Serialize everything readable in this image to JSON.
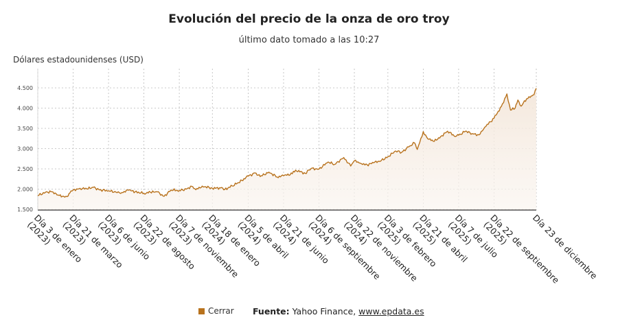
{
  "chart_data": {
    "type": "area",
    "title": "Evolución del precio de la onza de oro troy",
    "subtitle": "último dato tomado a las 10:27",
    "ylabel": "Dólares estadounidenses (USD)",
    "ylim": [
      1500,
      4500
    ],
    "yticks": [
      1500,
      2000,
      2500,
      3000,
      3500,
      4000,
      4500
    ],
    "ytick_labels": [
      "1.500",
      "2.000",
      "2.500",
      "3.000",
      "3.500",
      "4.000",
      "4.500"
    ],
    "xticks": [
      {
        "date": "2023-01-03",
        "label": [
          "Día 3 de enero",
          "(2023)"
        ]
      },
      {
        "date": "2023-03-21",
        "label": [
          "Día 21 de marzo",
          "(2023)"
        ]
      },
      {
        "date": "2023-06-06",
        "label": [
          "Día 6 de junio",
          "(2023)"
        ]
      },
      {
        "date": "2023-08-22",
        "label": [
          "Día 22 de agosto",
          "(2023)"
        ]
      },
      {
        "date": "2023-11-07",
        "label": [
          "Día 7 de noviembre",
          "(2023)"
        ]
      },
      {
        "date": "2024-01-18",
        "label": [
          "Día 18 de enero",
          "(2024)"
        ]
      },
      {
        "date": "2024-04-05",
        "label": [
          "Día 5 de abril",
          "(2024)"
        ]
      },
      {
        "date": "2024-06-21",
        "label": [
          "Día 21 de junio",
          "(2024)"
        ]
      },
      {
        "date": "2024-09-06",
        "label": [
          "Día 6 de septiembre",
          "(2024)"
        ]
      },
      {
        "date": "2024-11-22",
        "label": [
          "Día 22 de noviembre",
          "(2024)"
        ]
      },
      {
        "date": "2025-02-03",
        "label": [
          "Día 3 de febrero",
          "(2025)"
        ]
      },
      {
        "date": "2025-04-21",
        "label": [
          "Día 21 de abril",
          "(2025)"
        ]
      },
      {
        "date": "2025-07-07",
        "label": [
          "Día 7 de julio",
          "(2025)"
        ]
      },
      {
        "date": "2025-09-22",
        "label": [
          "Día 22 de septiembre",
          "(2025)"
        ]
      },
      {
        "date": "2025-12-23",
        "label": [
          "Día 23 de diciembre"
        ]
      }
    ],
    "grid": true,
    "legend_position": "bottom",
    "series": [
      {
        "name": "Cerrar",
        "color": "#b8721d",
        "points": [
          [
            "2023-01-03",
            1840
          ],
          [
            "2023-01-20",
            1925
          ],
          [
            "2023-02-03",
            1935
          ],
          [
            "2023-02-14",
            1855
          ],
          [
            "2023-02-28",
            1825
          ],
          [
            "2023-03-08",
            1815
          ],
          [
            "2023-03-14",
            1905
          ],
          [
            "2023-03-21",
            1975
          ],
          [
            "2023-04-05",
            2020
          ],
          [
            "2023-04-20",
            2005
          ],
          [
            "2023-05-04",
            2045
          ],
          [
            "2023-05-18",
            1980
          ],
          [
            "2023-06-06",
            1960
          ],
          [
            "2023-06-22",
            1925
          ],
          [
            "2023-07-05",
            1915
          ],
          [
            "2023-07-20",
            1975
          ],
          [
            "2023-08-03",
            1935
          ],
          [
            "2023-08-22",
            1895
          ],
          [
            "2023-09-05",
            1925
          ],
          [
            "2023-09-20",
            1930
          ],
          [
            "2023-10-05",
            1822
          ],
          [
            "2023-10-20",
            1980
          ],
          [
            "2023-11-07",
            1965
          ],
          [
            "2023-11-22",
            2000
          ],
          [
            "2023-12-04",
            2070
          ],
          [
            "2023-12-13",
            1985
          ],
          [
            "2023-12-27",
            2075
          ],
          [
            "2024-01-18",
            2020
          ],
          [
            "2024-02-05",
            2030
          ],
          [
            "2024-02-14",
            1990
          ],
          [
            "2024-03-01",
            2080
          ],
          [
            "2024-03-15",
            2160
          ],
          [
            "2024-04-05",
            2320
          ],
          [
            "2024-04-20",
            2400
          ],
          [
            "2024-05-01",
            2310
          ],
          [
            "2024-05-20",
            2420
          ],
          [
            "2024-06-07",
            2300
          ],
          [
            "2024-06-21",
            2330
          ],
          [
            "2024-07-10",
            2380
          ],
          [
            "2024-07-17",
            2470
          ],
          [
            "2024-08-07",
            2390
          ],
          [
            "2024-08-20",
            2510
          ],
          [
            "2024-09-06",
            2495
          ],
          [
            "2024-09-26",
            2670
          ],
          [
            "2024-10-10",
            2610
          ],
          [
            "2024-10-30",
            2780
          ],
          [
            "2024-11-14",
            2570
          ],
          [
            "2024-11-22",
            2700
          ],
          [
            "2024-12-05",
            2640
          ],
          [
            "2024-12-20",
            2600
          ],
          [
            "2025-01-03",
            2650
          ],
          [
            "2025-01-20",
            2710
          ],
          [
            "2025-02-03",
            2800
          ],
          [
            "2025-02-20",
            2940
          ],
          [
            "2025-03-05",
            2910
          ],
          [
            "2025-03-20",
            3040
          ],
          [
            "2025-04-02",
            3140
          ],
          [
            "2025-04-08",
            2980
          ],
          [
            "2025-04-21",
            3420
          ],
          [
            "2025-05-01",
            3240
          ],
          [
            "2025-05-15",
            3180
          ],
          [
            "2025-05-29",
            3300
          ],
          [
            "2025-06-13",
            3430
          ],
          [
            "2025-06-30",
            3300
          ],
          [
            "2025-07-07",
            3330
          ],
          [
            "2025-07-22",
            3430
          ],
          [
            "2025-08-05",
            3370
          ],
          [
            "2025-08-20",
            3340
          ],
          [
            "2025-09-02",
            3530
          ],
          [
            "2025-09-22",
            3750
          ],
          [
            "2025-10-08",
            4040
          ],
          [
            "2025-10-20",
            4350
          ],
          [
            "2025-10-28",
            3950
          ],
          [
            "2025-11-07",
            4000
          ],
          [
            "2025-11-13",
            4200
          ],
          [
            "2025-11-20",
            4050
          ],
          [
            "2025-12-02",
            4230
          ],
          [
            "2025-12-12",
            4300
          ],
          [
            "2025-12-18",
            4330
          ],
          [
            "2025-12-23",
            4490
          ]
        ]
      }
    ]
  },
  "legend": {
    "label": "Cerrar",
    "color": "#b8721d"
  },
  "source": {
    "label": "Fuente:",
    "text": " Yahoo Finance, ",
    "link": "www.epdata.es"
  }
}
